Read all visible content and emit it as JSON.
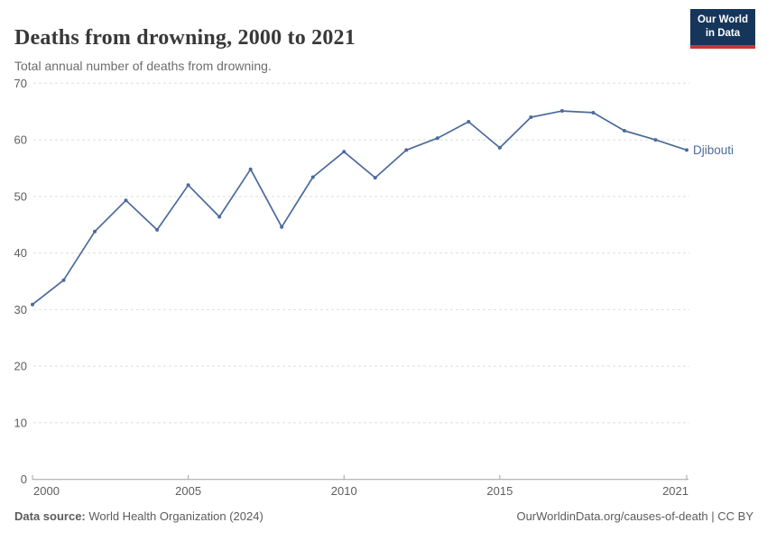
{
  "header": {
    "title": "Deaths from drowning, 2000 to 2021",
    "subtitle": "Total annual number of deaths from drowning.",
    "logo": {
      "line1": "Our World",
      "line2": "in Data"
    }
  },
  "chart_data": {
    "type": "line",
    "title": "Deaths from drowning, 2000 to 2021",
    "x": [
      2000,
      2001,
      2002,
      2003,
      2004,
      2005,
      2006,
      2007,
      2008,
      2009,
      2010,
      2011,
      2012,
      2013,
      2014,
      2015,
      2016,
      2017,
      2018,
      2019,
      2020,
      2021
    ],
    "series": [
      {
        "name": "Djibouti",
        "color": "#4c6a9c",
        "values": [
          30.9,
          35.2,
          43.8,
          49.3,
          44.1,
          52.0,
          46.4,
          54.8,
          44.6,
          53.4,
          57.9,
          53.3,
          58.2,
          60.3,
          63.2,
          58.6,
          64.0,
          65.1,
          64.8,
          61.6,
          60.0,
          58.2
        ]
      }
    ],
    "xlabel": "",
    "ylabel": "",
    "ylim": [
      0,
      70
    ],
    "yticks": [
      0,
      10,
      20,
      30,
      40,
      50,
      60,
      70
    ],
    "xticks": [
      2000,
      2005,
      2010,
      2015,
      2021
    ],
    "grid": "horizontal-dashed",
    "legend": "series-end-label"
  },
  "footer": {
    "source_label": "Data source:",
    "source_text": " World Health Organization (2024)",
    "link_text": "OurWorldinData.org/causes-of-death | CC BY"
  },
  "colors": {
    "line": "#4c6a9c",
    "grid": "#dedede",
    "axis": "#a3a3a3",
    "tick_label": "#5e5e5e",
    "title": "#383838",
    "subtitle": "#6d6d6d",
    "footer": "#5c5c5c",
    "logo_bg": "#16355a",
    "logo_red": "#c5392e",
    "background": "#ffffff"
  }
}
